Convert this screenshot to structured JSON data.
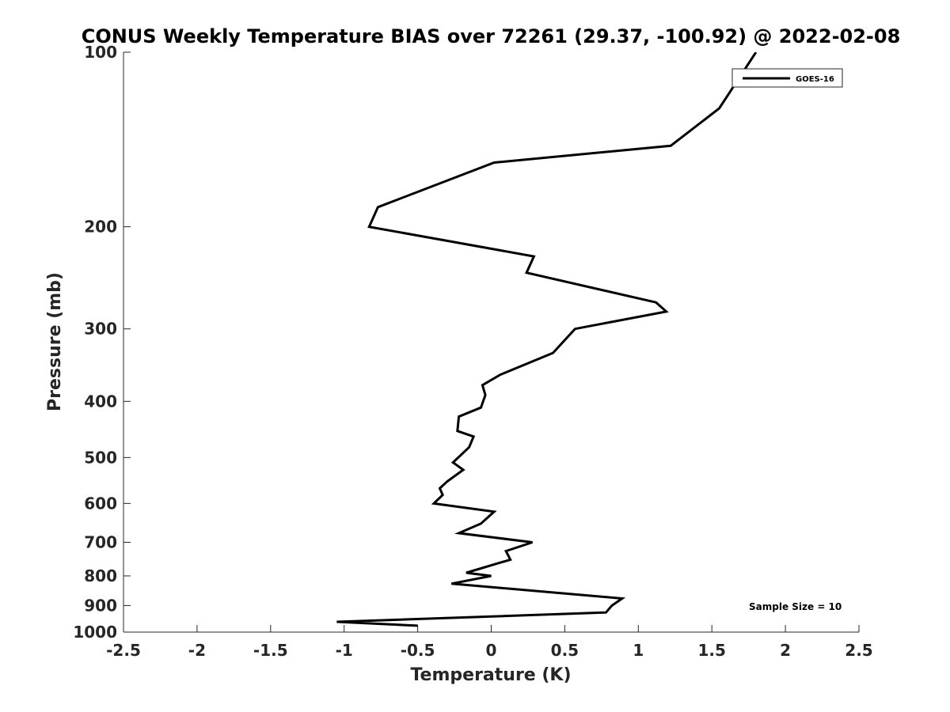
{
  "chart_data": {
    "type": "line",
    "title": "CONUS Weekly Temperature BIAS over 72261 (29.37, -100.92) @ 2022-02-08",
    "xlabel": "Temperature (K)",
    "ylabel": "Pressure (mb)",
    "xlim": [
      -2.5,
      2.5
    ],
    "ylim": [
      1000,
      100
    ],
    "yscale": "log",
    "y_reversed": true,
    "grid": false,
    "x_ticks": [
      -2.5,
      -2,
      -1.5,
      -1,
      -0.5,
      0,
      0.5,
      1,
      1.5,
      2,
      2.5
    ],
    "x_tick_labels": [
      "-2.5",
      "-2",
      "-1.5",
      "-1",
      "-0.5",
      "0",
      "0.5",
      "1",
      "1.5",
      "2",
      "2.5"
    ],
    "y_ticks": [
      100,
      200,
      300,
      400,
      500,
      600,
      700,
      800,
      900,
      1000
    ],
    "y_tick_labels": [
      "100",
      "200",
      "300",
      "400",
      "500",
      "600",
      "700",
      "800",
      "900",
      "1000"
    ],
    "legend_position": "top-right",
    "series": [
      {
        "name": "GOES-16",
        "color": "#000000",
        "points": [
          {
            "p": 975,
            "t": -0.5
          },
          {
            "p": 960,
            "t": -1.05
          },
          {
            "p": 925,
            "t": 0.78
          },
          {
            "p": 900,
            "t": 0.82
          },
          {
            "p": 875,
            "t": 0.89
          },
          {
            "p": 825,
            "t": -0.27
          },
          {
            "p": 800,
            "t": 0.0
          },
          {
            "p": 790,
            "t": -0.17
          },
          {
            "p": 750,
            "t": 0.13
          },
          {
            "p": 725,
            "t": 0.1
          },
          {
            "p": 700,
            "t": 0.28
          },
          {
            "p": 675,
            "t": -0.22
          },
          {
            "p": 650,
            "t": -0.07
          },
          {
            "p": 620,
            "t": 0.02
          },
          {
            "p": 600,
            "t": -0.39
          },
          {
            "p": 580,
            "t": -0.33
          },
          {
            "p": 565,
            "t": -0.35
          },
          {
            "p": 550,
            "t": -0.3
          },
          {
            "p": 525,
            "t": -0.19
          },
          {
            "p": 510,
            "t": -0.26
          },
          {
            "p": 480,
            "t": -0.15
          },
          {
            "p": 460,
            "t": -0.12
          },
          {
            "p": 450,
            "t": -0.23
          },
          {
            "p": 425,
            "t": -0.22
          },
          {
            "p": 410,
            "t": -0.07
          },
          {
            "p": 390,
            "t": -0.04
          },
          {
            "p": 375,
            "t": -0.06
          },
          {
            "p": 360,
            "t": 0.06
          },
          {
            "p": 330,
            "t": 0.42
          },
          {
            "p": 300,
            "t": 0.57
          },
          {
            "p": 280,
            "t": 1.19
          },
          {
            "p": 270,
            "t": 1.12
          },
          {
            "p": 240,
            "t": 0.24
          },
          {
            "p": 225,
            "t": 0.29
          },
          {
            "p": 200,
            "t": -0.83
          },
          {
            "p": 185,
            "t": -0.77
          },
          {
            "p": 155,
            "t": 0.02
          },
          {
            "p": 145,
            "t": 1.22
          },
          {
            "p": 125,
            "t": 1.55
          },
          {
            "p": 100,
            "t": 1.8
          }
        ]
      }
    ],
    "annotations": [
      {
        "text": "Sample Size = 10",
        "position": "bottom-right"
      }
    ]
  }
}
